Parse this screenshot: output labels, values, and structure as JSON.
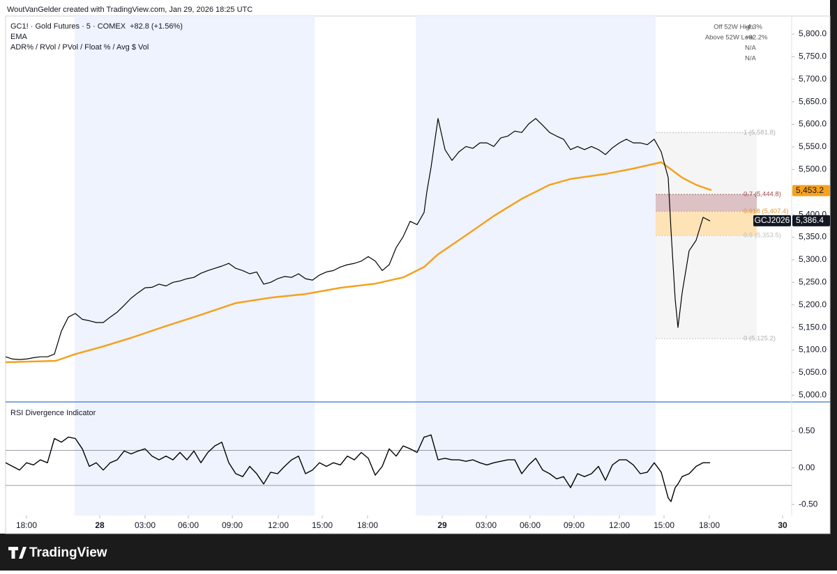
{
  "header": {
    "credit": "WoutVanGelder created with TradingView.com, Jan 29, 2026 18:25 UTC"
  },
  "footer": {
    "brand": "TradingView"
  },
  "chart_data": [
    {
      "type": "line",
      "change_label": "+82.8 (+1.56%)",
      "indicator_labels": [
        "ADR% / RVol / PVol / Float % / Avg $ Vol"
      ],
      "stats": [
        {
          "label": "Off 52W High",
          "value": "-4.3%"
        },
        {
          "label": "Above 52W Low",
          "value": "+92.2%"
        },
        {
          "value": "N/A"
        },
        {
          "value": "N/A"
        }
      ],
      "x": [
        0,
        1,
        2,
        3,
        4,
        5,
        6,
        7,
        8,
        9,
        10,
        11,
        12,
        13,
        14,
        15,
        16,
        17,
        18,
        19,
        20,
        21,
        22,
        23,
        24,
        25,
        26,
        27,
        28,
        29,
        30,
        31,
        32,
        33,
        34,
        35,
        36,
        37,
        38,
        39,
        40,
        41,
        42,
        43,
        44,
        45,
        46,
        47,
        48,
        49,
        50,
        51,
        52,
        53,
        54,
        55,
        56,
        57,
        58,
        59,
        60,
        60.4,
        61,
        62,
        63,
        64,
        65,
        66,
        67,
        68,
        69,
        70,
        71,
        72,
        73,
        74,
        75,
        76,
        77,
        78,
        79,
        80,
        81,
        82,
        83,
        84,
        85,
        86,
        87,
        88,
        89,
        90,
        91,
        92,
        93,
        94,
        95,
        95.4,
        96,
        96.4,
        97,
        98,
        99,
        100,
        101
      ],
      "series": [
        {
          "name": "GC1! · Gold Futures · 5 · COMEX",
          "color": "#000000",
          "values": [
            5085,
            5080,
            5079,
            5080,
            5083,
            5085,
            5085,
            5091,
            5142,
            5173,
            5181,
            5168,
            5165,
            5161,
            5161,
            5173,
            5184,
            5199,
            5215,
            5227,
            5238,
            5239,
            5246,
            5242,
            5250,
            5253,
            5258,
            5261,
            5270,
            5276,
            5281,
            5286,
            5292,
            5281,
            5276,
            5269,
            5273,
            5246,
            5250,
            5258,
            5263,
            5261,
            5269,
            5258,
            5255,
            5266,
            5273,
            5276,
            5284,
            5289,
            5292,
            5297,
            5307,
            5297,
            5276,
            5289,
            5327,
            5351,
            5385,
            5378,
            5405,
            5451,
            5505,
            5613,
            5544,
            5520,
            5539,
            5551,
            5547,
            5559,
            5559,
            5551,
            5570,
            5574,
            5585,
            5582,
            5601,
            5613,
            5598,
            5582,
            5574,
            5567,
            5544,
            5551,
            5544,
            5551,
            5544,
            5533,
            5548,
            5559,
            5567,
            5559,
            5559,
            5555,
            5567,
            5539,
            5482,
            5366,
            5212,
            5150,
            5227,
            5320,
            5343,
            5394,
            5386
          ]
        },
        {
          "name": "EMA",
          "color": "#f5a11c",
          "x": [
            0,
            7.2,
            10,
            14,
            18,
            23,
            28,
            33,
            38,
            43,
            48,
            53,
            57,
            60,
            62,
            66,
            70,
            74,
            78,
            81,
            86,
            90,
            94,
            95,
            97,
            99,
            101.2
          ],
          "values": [
            5073,
            5076,
            5091,
            5108,
            5127,
            5153,
            5178,
            5204,
            5216,
            5224,
            5238,
            5247,
            5261,
            5284,
            5312,
            5354,
            5397,
            5435,
            5466,
            5479,
            5490,
            5502,
            5516,
            5505,
            5482,
            5466,
            5454
          ]
        }
      ],
      "price_tags": [
        {
          "label": "5,453.2",
          "value": 5453.2,
          "color": "#f7a21b"
        },
        {
          "symbol": "GCJ2026",
          "label": "5,386.4",
          "value": 5386.4,
          "color": "#131722"
        }
      ],
      "fib": {
        "levels": [
          {
            "label": "1 (5,581.8)",
            "value": 5581.8,
            "color": "#b0b0b0"
          },
          {
            "label": "0.7 (5,444.8)",
            "value": 5444.8,
            "color": "#9c4a4a"
          },
          {
            "label": "0.618 (5,407.4)",
            "value": 5407.4,
            "color": "#e39a2e"
          },
          {
            "label": "0.5 (5,353.5)",
            "value": 5353.5,
            "color": "#c0c0c0"
          },
          {
            "label": "0 (5,125.2)",
            "value": 5125.2,
            "color": "#b0b0b0"
          }
        ],
        "fills": [
          "#f5f5f5",
          "#dcc1c5",
          "#fde3b6",
          "#f5f5f5"
        ]
      },
      "xlim": [
        0,
        112.7
      ],
      "xticks": [
        {
          "value": 3.0,
          "label": "18:00"
        },
        {
          "value": 13.5,
          "label": "28"
        },
        {
          "value": 20.0,
          "label": "03:00"
        },
        {
          "value": 26.2,
          "label": "06:00"
        },
        {
          "value": 32.5,
          "label": "09:00"
        },
        {
          "value": 39.1,
          "label": "12:00"
        },
        {
          "value": 45.4,
          "label": "15:00"
        },
        {
          "value": 51.9,
          "label": "18:00"
        },
        {
          "value": 62.6,
          "label": "29"
        },
        {
          "value": 68.9,
          "label": "03:00"
        },
        {
          "value": 75.2,
          "label": "06:00"
        },
        {
          "value": 81.5,
          "label": "09:00"
        },
        {
          "value": 88.0,
          "label": "12:00"
        },
        {
          "value": 94.4,
          "label": "15:00"
        },
        {
          "value": 100.9,
          "label": "18:00"
        },
        {
          "value": 111.4,
          "label": "30"
        }
      ],
      "bold_xticks": [
        "28",
        "29",
        "30"
      ],
      "ylim": [
        4985,
        5840
      ],
      "yticks": [
        {
          "value": 5000,
          "label": "5,000.0"
        },
        {
          "value": 5050,
          "label": "5,050.0"
        },
        {
          "value": 5100,
          "label": "5,100.0"
        },
        {
          "value": 5150,
          "label": "5,150.0"
        },
        {
          "value": 5200,
          "label": "5,200.0"
        },
        {
          "value": 5250,
          "label": "5,250.0"
        },
        {
          "value": 5300,
          "label": "5,300.0"
        },
        {
          "value": 5350,
          "label": "5,350.0"
        },
        {
          "value": 5400,
          "label": "5,400.0"
        },
        {
          "value": 5450,
          "label": "5,450.0"
        },
        {
          "value": 5500,
          "label": "5,500.0"
        },
        {
          "value": 5550,
          "label": "5,550.0"
        },
        {
          "value": 5600,
          "label": "5,600.0"
        },
        {
          "value": 5650,
          "label": "5,650.0"
        },
        {
          "value": 5700,
          "label": "5,700.0"
        },
        {
          "value": 5750,
          "label": "5,750.0"
        },
        {
          "value": 5800,
          "label": "5,800.0"
        }
      ],
      "grid": false
    },
    {
      "type": "line",
      "title": "RSI Divergence Indicator",
      "series": [
        {
          "color": "#000000",
          "values": [
            0.07,
            0.02,
            -0.03,
            0.07,
            0.04,
            0.11,
            0.07,
            0.4,
            0.35,
            0.42,
            0.4,
            0.26,
            0.02,
            0.07,
            -0.03,
            0.07,
            0.11,
            0.23,
            0.19,
            0.23,
            0.26,
            0.16,
            0.11,
            0.16,
            0.11,
            0.21,
            0.11,
            0.23,
            0.07,
            0.21,
            0.3,
            0.35,
            0.07,
            -0.08,
            -0.12,
            0.02,
            -0.08,
            -0.22,
            -0.06,
            -0.08,
            0.02,
            0.11,
            0.16,
            -0.08,
            -0.03,
            0.07,
            0.02,
            0.07,
            0.04,
            0.16,
            0.11,
            0.21,
            0.13,
            -0.1,
            0.02,
            0.26,
            0.16,
            0.3,
            0.26,
            0.21,
            0.42,
            0.43,
            0.45,
            0.11,
            0.13,
            0.11,
            0.11,
            0.09,
            0.11,
            0.07,
            0.04,
            0.07,
            0.09,
            0.11,
            0.11,
            -0.08,
            0.04,
            0.13,
            -0.03,
            -0.08,
            -0.15,
            -0.12,
            -0.27,
            -0.08,
            -0.12,
            -0.08,
            0.02,
            -0.17,
            0.04,
            0.11,
            0.11,
            0.04,
            -0.08,
            -0.06,
            0.07,
            -0.06,
            -0.41,
            -0.46,
            -0.27,
            -0.22,
            -0.12,
            -0.08,
            0.02,
            0.07,
            0.07
          ]
        }
      ],
      "hlines": [
        0.24,
        -0.24
      ],
      "ylim": [
        -0.65,
        0.89
      ],
      "yticks": [
        {
          "value": 0.5,
          "label": "0.50"
        },
        {
          "value": 0,
          "label": "0.00"
        },
        {
          "value": -0.5,
          "label": "-0.50"
        }
      ],
      "grid": false
    }
  ]
}
